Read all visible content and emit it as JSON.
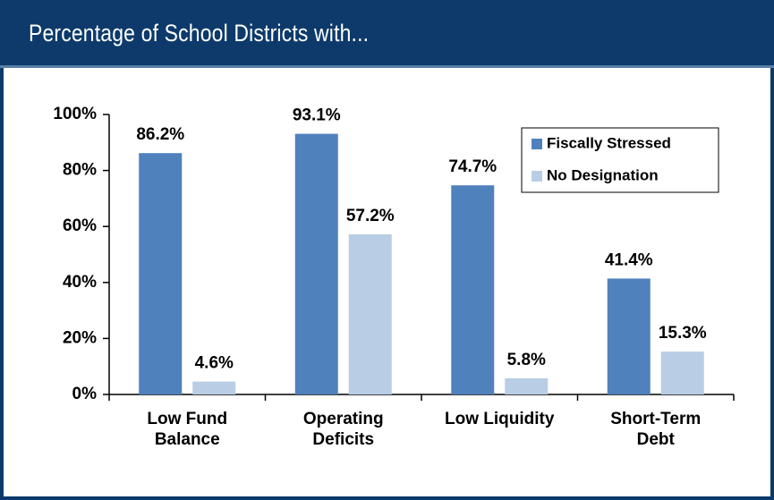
{
  "chart_data": {
    "type": "bar",
    "title": "Percentage of School Districts with...",
    "categories": [
      "Low Fund Balance",
      "Operating Deficits",
      "Low Liquidity",
      "Short-Term Debt"
    ],
    "series": [
      {
        "name": "Fiscally Stressed",
        "color": "#4f81bd",
        "values": [
          86.2,
          93.1,
          74.7,
          41.4
        ],
        "value_labels": [
          "86.2%",
          "93.1%",
          "74.7%",
          "41.4%"
        ]
      },
      {
        "name": "No Designation",
        "color": "#b9cde5",
        "values": [
          4.6,
          57.2,
          5.8,
          15.3
        ],
        "value_labels": [
          "4.6%",
          "57.2%",
          "5.8%",
          "15.3%"
        ]
      }
    ],
    "ylim": [
      0,
      100
    ],
    "yticks": [
      {
        "value": 0,
        "label": "0%"
      },
      {
        "value": 20,
        "label": "20%"
      },
      {
        "value": 40,
        "label": "40%"
      },
      {
        "value": 60,
        "label": "60%"
      },
      {
        "value": 80,
        "label": "80%"
      },
      {
        "value": 100,
        "label": "100%"
      }
    ],
    "legend": "upper right"
  }
}
